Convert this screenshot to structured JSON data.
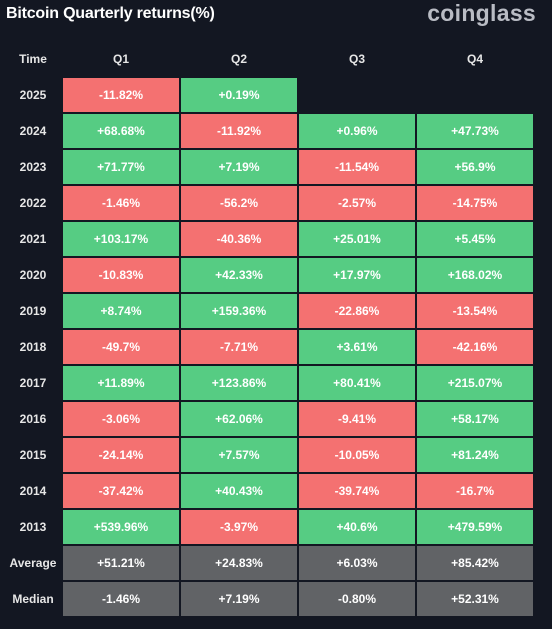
{
  "header": {
    "title": "Bitcoin Quarterly returns(%)",
    "brand": "coinglass"
  },
  "colors": {
    "positive": "#56cc83",
    "negative": "#f47171",
    "summary": "#616366",
    "background": "#131722"
  },
  "chart_data": {
    "type": "table",
    "title": "Bitcoin Quarterly returns(%)",
    "columns": [
      "Time",
      "Q1",
      "Q2",
      "Q3",
      "Q4"
    ],
    "rows": [
      {
        "label": "2025",
        "values": [
          "-11.82%",
          "+0.19%",
          "",
          ""
        ]
      },
      {
        "label": "2024",
        "values": [
          "+68.68%",
          "-11.92%",
          "+0.96%",
          "+47.73%"
        ]
      },
      {
        "label": "2023",
        "values": [
          "+71.77%",
          "+7.19%",
          "-11.54%",
          "+56.9%"
        ]
      },
      {
        "label": "2022",
        "values": [
          "-1.46%",
          "-56.2%",
          "-2.57%",
          "-14.75%"
        ]
      },
      {
        "label": "2021",
        "values": [
          "+103.17%",
          "-40.36%",
          "+25.01%",
          "+5.45%"
        ]
      },
      {
        "label": "2020",
        "values": [
          "-10.83%",
          "+42.33%",
          "+17.97%",
          "+168.02%"
        ]
      },
      {
        "label": "2019",
        "values": [
          "+8.74%",
          "+159.36%",
          "-22.86%",
          "-13.54%"
        ]
      },
      {
        "label": "2018",
        "values": [
          "-49.7%",
          "-7.71%",
          "+3.61%",
          "-42.16%"
        ]
      },
      {
        "label": "2017",
        "values": [
          "+11.89%",
          "+123.86%",
          "+80.41%",
          "+215.07%"
        ]
      },
      {
        "label": "2016",
        "values": [
          "-3.06%",
          "+62.06%",
          "-9.41%",
          "+58.17%"
        ]
      },
      {
        "label": "2015",
        "values": [
          "-24.14%",
          "+7.57%",
          "-10.05%",
          "+81.24%"
        ]
      },
      {
        "label": "2014",
        "values": [
          "-37.42%",
          "+40.43%",
          "-39.74%",
          "-16.7%"
        ]
      },
      {
        "label": "2013",
        "values": [
          "+539.96%",
          "-3.97%",
          "+40.6%",
          "+479.59%"
        ]
      }
    ],
    "summary": [
      {
        "label": "Average",
        "values": [
          "+51.21%",
          "+24.83%",
          "+6.03%",
          "+85.42%"
        ]
      },
      {
        "label": "Median",
        "values": [
          "-1.46%",
          "+7.19%",
          "-0.80%",
          "+52.31%"
        ]
      }
    ]
  }
}
